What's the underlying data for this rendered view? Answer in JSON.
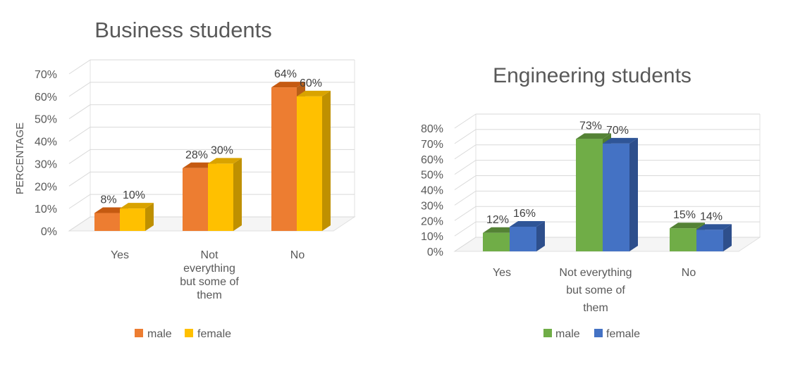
{
  "chart_data": [
    {
      "type": "bar",
      "title": "Business students",
      "ylabel": "PERCENTAGE",
      "xlabel": "",
      "ylim": [
        0,
        70
      ],
      "y_ticks": [
        "0%",
        "10%",
        "20%",
        "30%",
        "40%",
        "50%",
        "60%",
        "70%"
      ],
      "categories": [
        [
          "Yes"
        ],
        [
          "Not",
          "everything",
          "but some of",
          "them"
        ],
        [
          "No"
        ]
      ],
      "series": [
        {
          "name": "male",
          "values": [
            8,
            28,
            64
          ],
          "labels": [
            "8%",
            "28%",
            "64%"
          ],
          "color": "#ED7D31",
          "top": "#C55A11",
          "side": "#B85E17"
        },
        {
          "name": "female",
          "values": [
            10,
            30,
            60
          ],
          "labels": [
            "10%",
            "30%",
            "60%"
          ],
          "color": "#FFC000",
          "top": "#D9A300",
          "side": "#BF9000"
        }
      ],
      "legend": "bottom",
      "grid": true
    },
    {
      "type": "bar",
      "title": "Engineering students",
      "ylabel": "",
      "xlabel": "",
      "ylim": [
        0,
        80
      ],
      "y_ticks": [
        "0%",
        "10%",
        "20%",
        "30%",
        "40%",
        "50%",
        "60%",
        "70%",
        "80%"
      ],
      "categories": [
        [
          "Yes"
        ],
        [
          "Not everything",
          "but some of",
          "them"
        ],
        [
          "No"
        ]
      ],
      "series": [
        {
          "name": "male",
          "values": [
            12,
            73,
            15
          ],
          "labels": [
            "12%",
            "73%",
            "15%"
          ],
          "color": "#70AD47",
          "top": "#548235",
          "side": "#507E32"
        },
        {
          "name": "female",
          "values": [
            16,
            70,
            14
          ],
          "labels": [
            "16%",
            "70%",
            "14%"
          ],
          "color": "#4472C4",
          "top": "#2F5597",
          "side": "#2E4F8C"
        }
      ],
      "legend": "bottom",
      "grid": true
    }
  ]
}
